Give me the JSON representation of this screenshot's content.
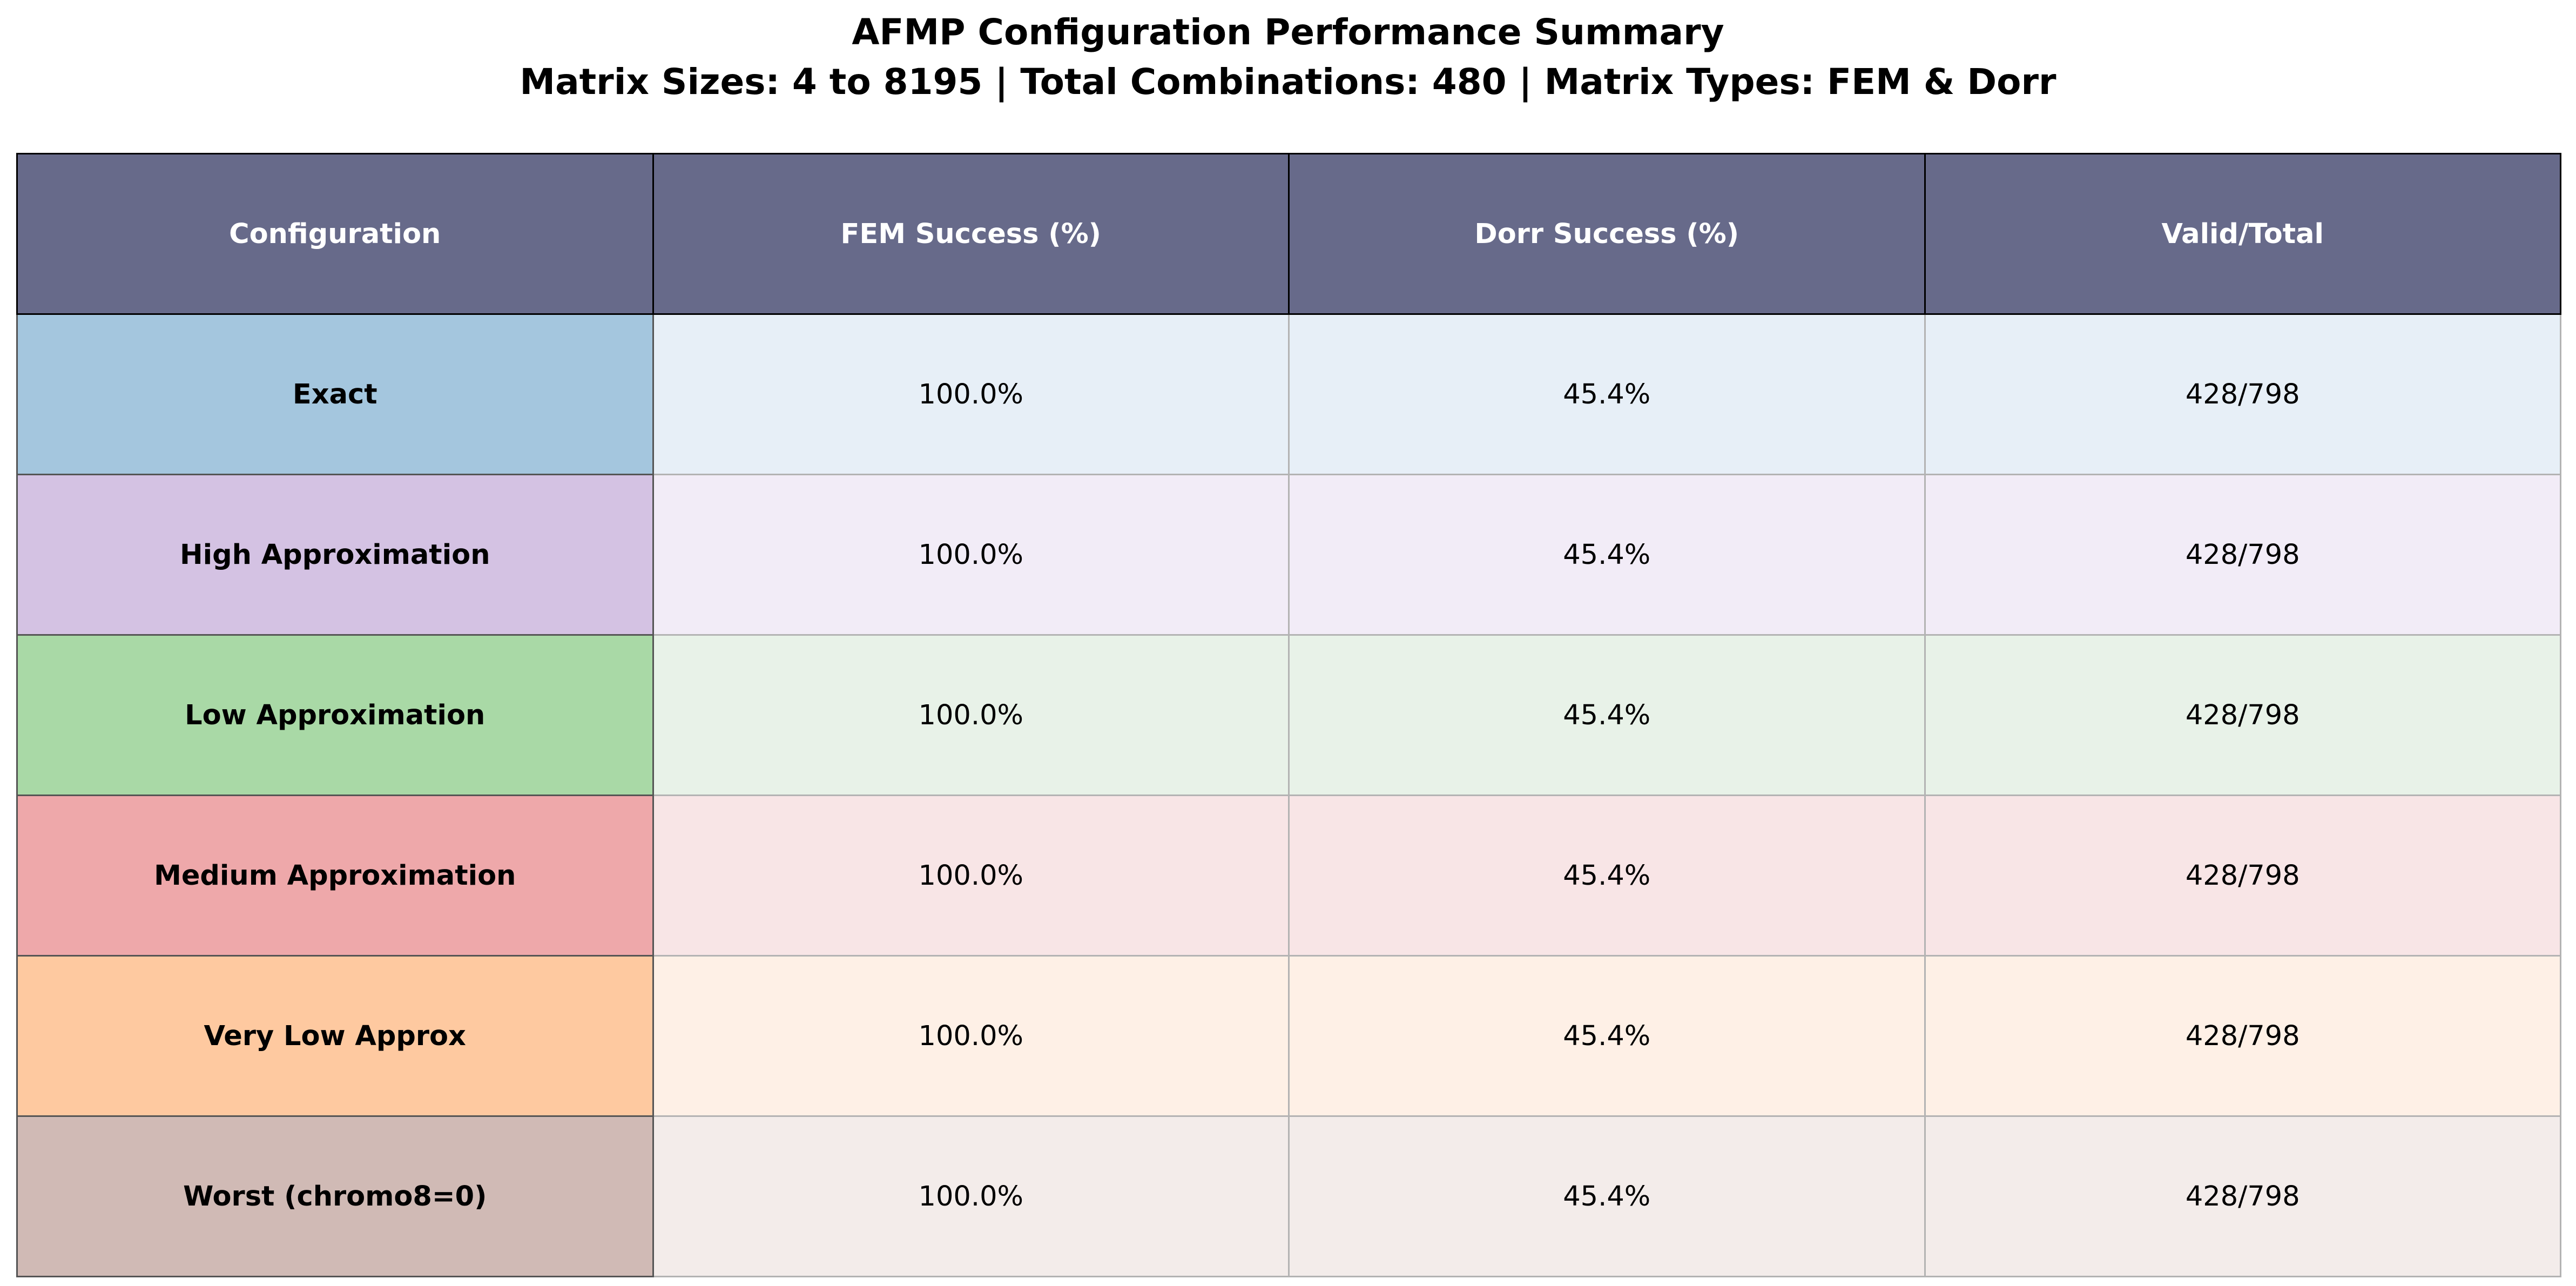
{
  "chart_data": {
    "type": "table",
    "title": "AFMP Configuration Performance Summary",
    "subtitle": "Matrix Sizes: 4 to 8195 | Total Combinations: 480 | Matrix Types: FEM & Dorr",
    "columns": [
      "Configuration",
      "FEM Success (%)",
      "Dorr Success (%)",
      "Valid/Total"
    ],
    "rows": [
      {
        "config": "Exact",
        "fem": "100.0%",
        "dorr": "45.4%",
        "valid_total": "428/798",
        "label_color": "#a4c6de",
        "row_color": "#e7eff7"
      },
      {
        "config": "High Approximation",
        "fem": "100.0%",
        "dorr": "45.4%",
        "valid_total": "428/798",
        "label_color": "#d4c2e3",
        "row_color": "#f2ecf7"
      },
      {
        "config": "Low Approximation",
        "fem": "100.0%",
        "dorr": "45.4%",
        "valid_total": "428/798",
        "label_color": "#a9d9a6",
        "row_color": "#e8f2e8"
      },
      {
        "config": "Medium Approximation",
        "fem": "100.0%",
        "dorr": "45.4%",
        "valid_total": "428/798",
        "label_color": "#eea8aa",
        "row_color": "#f8e5e6"
      },
      {
        "config": "Very Low Approx",
        "fem": "100.0%",
        "dorr": "45.4%",
        "valid_total": "428/798",
        "label_color": "#fec9a0",
        "row_color": "#fef0e6"
      },
      {
        "config": "Worst (chromo8=0)",
        "fem": "100.0%",
        "dorr": "45.4%",
        "valid_total": "428/798",
        "label_color": "#d0bab5",
        "row_color": "#f3ecea"
      }
    ],
    "header_color": "#676a8a"
  }
}
